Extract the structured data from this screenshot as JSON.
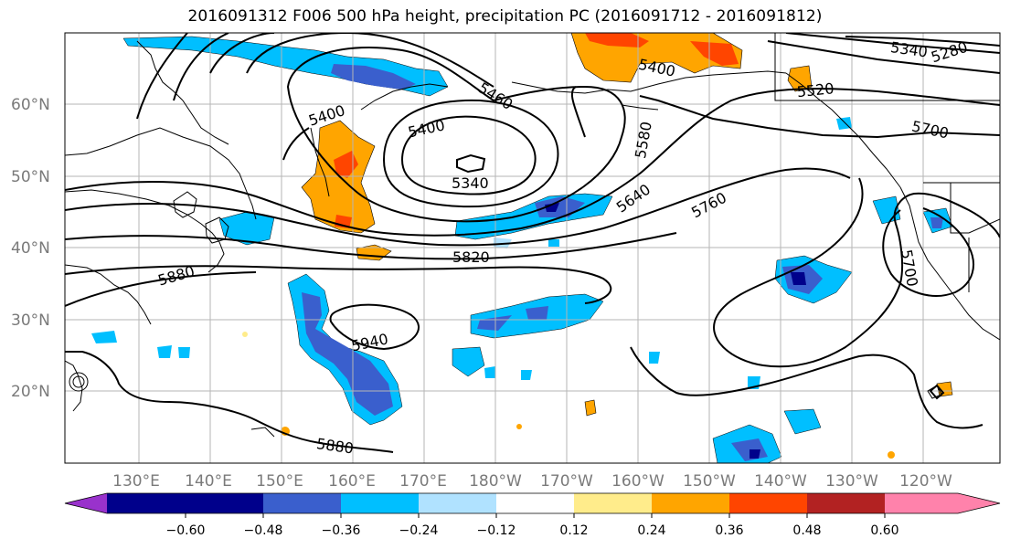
{
  "title": "2016091312 F006 500 hPa height, precipitation PC (2016091712 - 2016091812)",
  "map": {
    "lat_labels": [
      "60°N",
      "50°N",
      "40°N",
      "30°N",
      "20°N"
    ],
    "lon_labels": [
      "130°E",
      "140°E",
      "150°E",
      "160°E",
      "170°E",
      "180°W",
      "170°W",
      "160°W",
      "150°W",
      "140°W",
      "130°W",
      "120°W"
    ],
    "contour_labels": [
      "5400",
      "5460",
      "5400",
      "5340",
      "5580",
      "5640",
      "5760",
      "5700",
      "5520",
      "5400",
      "5340",
      "5280",
      "5820",
      "5880",
      "5940",
      "5880",
      "5700"
    ]
  },
  "colorbar": {
    "colors": [
      "#9932cc",
      "#00008b",
      "#3a5fcd",
      "#00bfff",
      "#b0e2ff",
      "#ffffff",
      "#ffec8b",
      "#ffa500",
      "#ff4500",
      "#b22222",
      "#ff82ab"
    ],
    "tick_labels": [
      "−0.60",
      "−0.48",
      "−0.36",
      "−0.24",
      "−0.12",
      "0.12",
      "0.24",
      "0.36",
      "0.48",
      "0.60"
    ]
  }
}
